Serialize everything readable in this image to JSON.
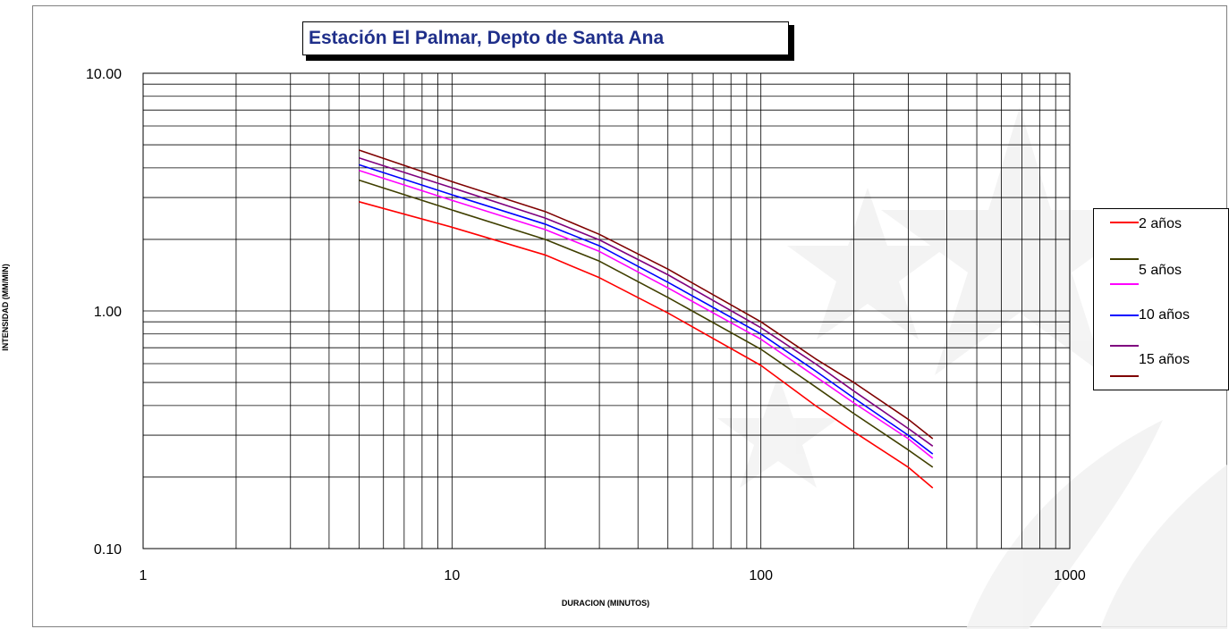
{
  "chart_data": {
    "type": "line",
    "title": "Estación El Palmar, Depto de Santa Ana",
    "xlabel": "DURACION (MINUTOS)",
    "ylabel": "INTENSIDAD (MM/MIN)",
    "xscale": "log",
    "yscale": "log",
    "xlim": [
      1,
      1000
    ],
    "ylim": [
      0.1,
      10
    ],
    "x_tick_labels": [
      "1",
      "10",
      "100",
      "1000"
    ],
    "y_tick_labels": [
      "0.10",
      "1.00",
      "10.00"
    ],
    "grid": true,
    "legend_position": "right",
    "x": [
      5,
      10,
      20,
      30,
      50,
      100,
      150,
      200,
      300,
      360
    ],
    "series": [
      {
        "name": "2 años",
        "color": "#ff0000",
        "values": [
          2.88,
          2.25,
          1.72,
          1.38,
          0.98,
          0.59,
          0.4,
          0.31,
          0.22,
          0.18
        ]
      },
      {
        "name": "5 años",
        "color": "#3f3f00",
        "values": [
          3.55,
          2.66,
          2.0,
          1.62,
          1.14,
          0.69,
          0.48,
          0.37,
          0.26,
          0.22
        ]
      },
      {
        "name": "",
        "color": "#ff00ff",
        "values": [
          3.9,
          2.92,
          2.2,
          1.78,
          1.25,
          0.76,
          0.53,
          0.41,
          0.29,
          0.24
        ]
      },
      {
        "name": "10 años",
        "color": "#0000ff",
        "values": [
          4.12,
          3.08,
          2.32,
          1.88,
          1.32,
          0.8,
          0.56,
          0.43,
          0.3,
          0.25
        ]
      },
      {
        "name": "",
        "color": "#7f007f",
        "values": [
          4.4,
          3.3,
          2.46,
          1.99,
          1.42,
          0.85,
          0.6,
          0.46,
          0.32,
          0.27
        ]
      },
      {
        "name": "15 años",
        "color": "#7f0000",
        "values": [
          4.75,
          3.5,
          2.62,
          2.1,
          1.5,
          0.9,
          0.63,
          0.5,
          0.35,
          0.29
        ]
      }
    ]
  }
}
